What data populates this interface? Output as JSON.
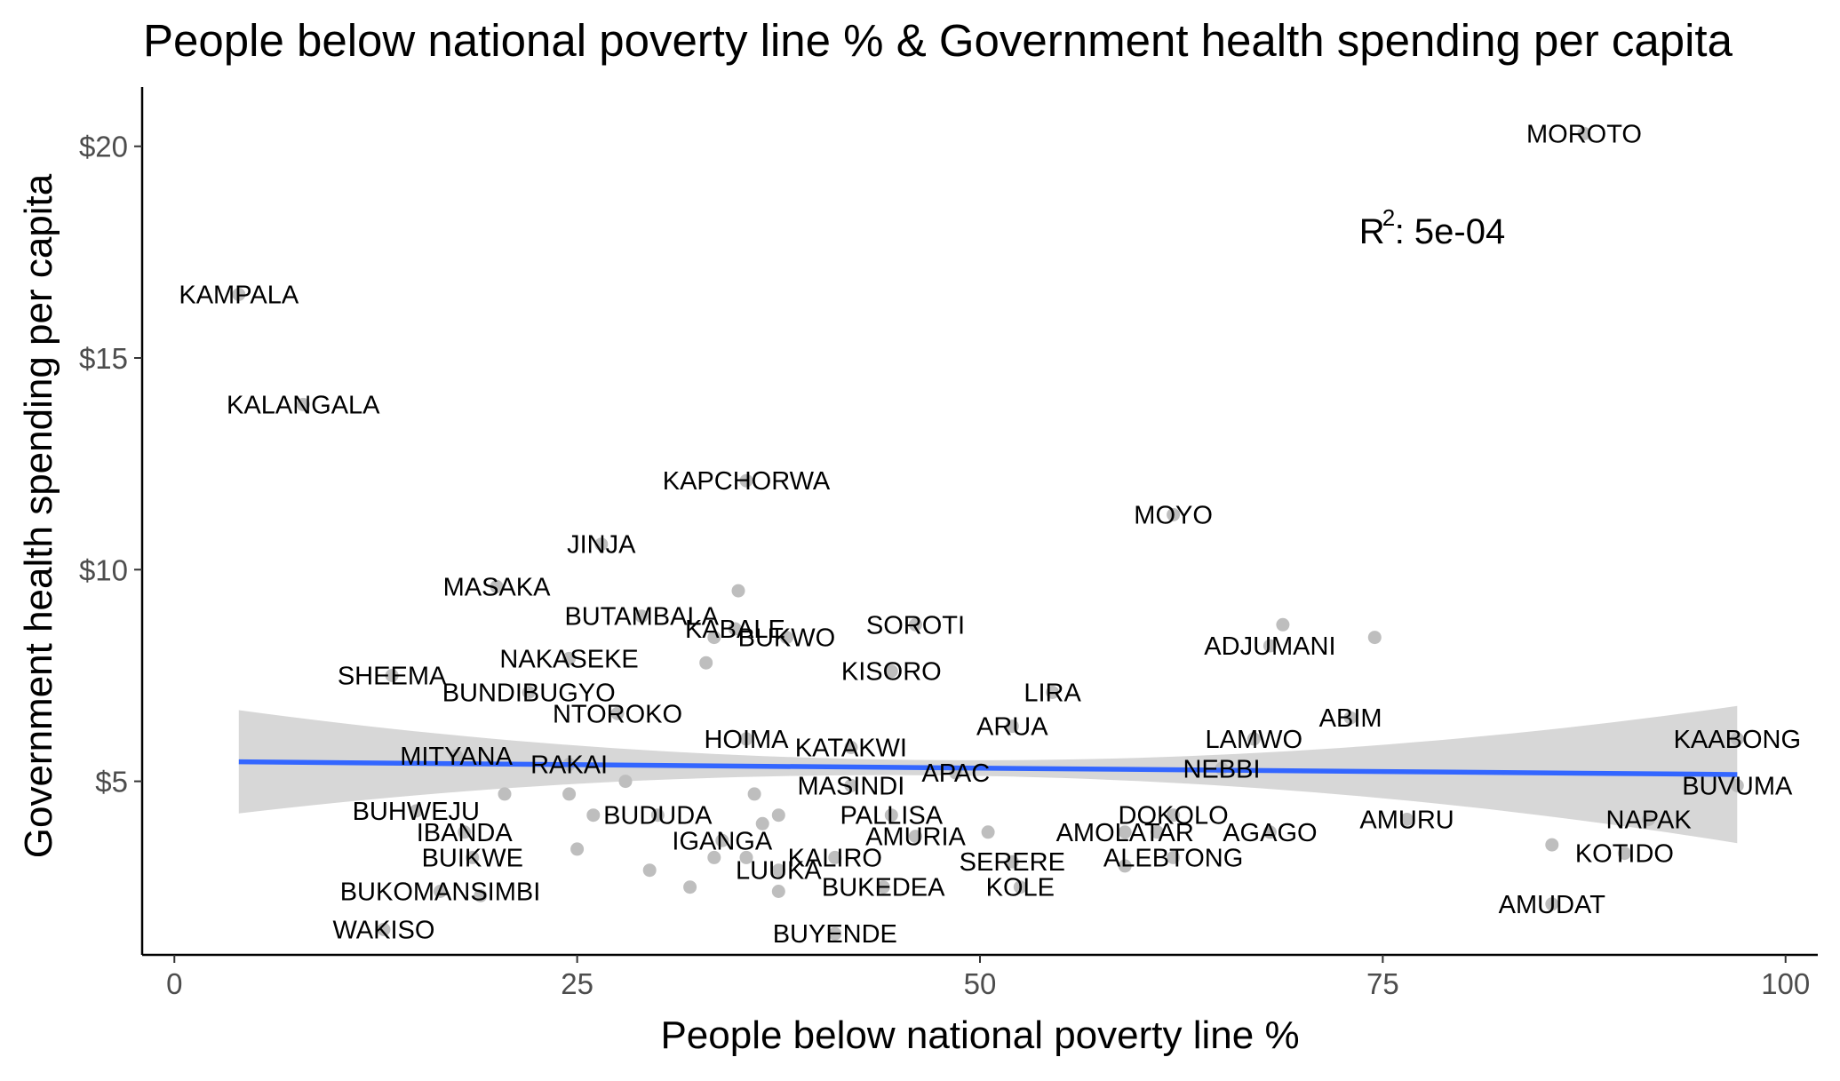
{
  "chart_data": {
    "type": "scatter",
    "title": "People below national poverty line % & Government health spending per capita",
    "xlabel": "People below national poverty line %",
    "ylabel": "Government health spending per capita",
    "xlim": [
      -2,
      102
    ],
    "ylim": [
      0.9,
      21.4
    ],
    "x_ticks": [
      0,
      25,
      50,
      75,
      100
    ],
    "y_ticks": [
      5,
      10,
      15,
      20
    ],
    "y_tick_labels": [
      "$5",
      "$10",
      "$15",
      "$20"
    ],
    "grid": false,
    "point_color": "#bebebe",
    "points": [
      {
        "label": "MOROTO",
        "x": 87.5,
        "y": 20.3
      },
      {
        "label": "KAMPALA",
        "x": 4.0,
        "y": 16.5
      },
      {
        "label": "KALANGALA",
        "x": 8.0,
        "y": 13.9
      },
      {
        "label": "KAPCHORWA",
        "x": 35.5,
        "y": 12.1
      },
      {
        "label": "MOYO",
        "x": 62.0,
        "y": 11.3
      },
      {
        "label": "JINJA",
        "x": 26.5,
        "y": 10.6
      },
      {
        "label": "MASAKA",
        "x": 20.0,
        "y": 9.6
      },
      {
        "label": "",
        "x": 35.0,
        "y": 9.5
      },
      {
        "label": "BUTAMBALA",
        "x": 29.0,
        "y": 8.9
      },
      {
        "label": "KABALE",
        "x": 34.8,
        "y": 8.6
      },
      {
        "label": "",
        "x": 33.5,
        "y": 8.4
      },
      {
        "label": "SOROTI",
        "x": 46.0,
        "y": 8.7
      },
      {
        "label": "",
        "x": 68.8,
        "y": 8.7
      },
      {
        "label": "",
        "x": 74.5,
        "y": 8.4
      },
      {
        "label": "ADJUMANI",
        "x": 68.0,
        "y": 8.2
      },
      {
        "label": "BUKWO",
        "x": 38.0,
        "y": 8.4
      },
      {
        "label": "NAKASEKE",
        "x": 24.5,
        "y": 7.9
      },
      {
        "label": "",
        "x": 33.0,
        "y": 7.8
      },
      {
        "label": "KISORO",
        "x": 44.5,
        "y": 7.6
      },
      {
        "label": "SHEEMA",
        "x": 13.5,
        "y": 7.5
      },
      {
        "label": "BUNDIBUGYO",
        "x": 22.0,
        "y": 7.1
      },
      {
        "label": "LIRA",
        "x": 54.5,
        "y": 7.1
      },
      {
        "label": "NTOROKO",
        "x": 27.5,
        "y": 6.6
      },
      {
        "label": "ABIM",
        "x": 73.0,
        "y": 6.5
      },
      {
        "label": "ARUA",
        "x": 52.0,
        "y": 6.3
      },
      {
        "label": "HOIMA",
        "x": 35.5,
        "y": 6.0
      },
      {
        "label": "LAMWO",
        "x": 67.0,
        "y": 6.0
      },
      {
        "label": "KAABONG",
        "x": 97.0,
        "y": 6.0
      },
      {
        "label": "KATAKWI",
        "x": 42.0,
        "y": 5.8
      },
      {
        "label": "MITYANA",
        "x": 17.5,
        "y": 5.6
      },
      {
        "label": "RAKAI",
        "x": 24.5,
        "y": 5.4
      },
      {
        "label": "APAC",
        "x": 48.5,
        "y": 5.2
      },
      {
        "label": "NEBBI",
        "x": 65.0,
        "y": 5.3
      },
      {
        "label": "",
        "x": 28.0,
        "y": 5.0
      },
      {
        "label": "MASINDI",
        "x": 42.0,
        "y": 4.9
      },
      {
        "label": "BUVUMA",
        "x": 97.0,
        "y": 4.9
      },
      {
        "label": "",
        "x": 20.5,
        "y": 4.7
      },
      {
        "label": "",
        "x": 24.5,
        "y": 4.7
      },
      {
        "label": "",
        "x": 36.0,
        "y": 4.7
      },
      {
        "label": "BUHWEJU",
        "x": 15.0,
        "y": 4.3
      },
      {
        "label": "BUDUDA",
        "x": 30.0,
        "y": 4.2
      },
      {
        "label": "",
        "x": 26.0,
        "y": 4.2
      },
      {
        "label": "",
        "x": 37.5,
        "y": 4.2
      },
      {
        "label": "PALLISA",
        "x": 44.5,
        "y": 4.2
      },
      {
        "label": "DOKOLO",
        "x": 62.0,
        "y": 4.2
      },
      {
        "label": "NAPAK",
        "x": 91.5,
        "y": 4.1
      },
      {
        "label": "AMURU",
        "x": 76.5,
        "y": 4.1
      },
      {
        "label": "",
        "x": 36.5,
        "y": 4.0
      },
      {
        "label": "IBANDA",
        "x": 18.0,
        "y": 3.8
      },
      {
        "label": "AMOLATAR",
        "x": 59.0,
        "y": 3.8
      },
      {
        "label": "",
        "x": 50.5,
        "y": 3.8
      },
      {
        "label": "AGAGO",
        "x": 68.0,
        "y": 3.8
      },
      {
        "label": "",
        "x": 61.0,
        "y": 3.8
      },
      {
        "label": "AMURIA",
        "x": 46.0,
        "y": 3.7
      },
      {
        "label": "IGANGA",
        "x": 34.0,
        "y": 3.6
      },
      {
        "label": "",
        "x": 25.0,
        "y": 3.4
      },
      {
        "label": "",
        "x": 85.5,
        "y": 3.5
      },
      {
        "label": "BUIKWE",
        "x": 18.5,
        "y": 3.2
      },
      {
        "label": "",
        "x": 33.5,
        "y": 3.2
      },
      {
        "label": "",
        "x": 35.5,
        "y": 3.2
      },
      {
        "label": "KALIRO",
        "x": 41.0,
        "y": 3.2
      },
      {
        "label": "ALEBTONG",
        "x": 62.0,
        "y": 3.2
      },
      {
        "label": "KOTIDO",
        "x": 90.0,
        "y": 3.3
      },
      {
        "label": "SERERE",
        "x": 52.0,
        "y": 3.1
      },
      {
        "label": "",
        "x": 29.5,
        "y": 2.9
      },
      {
        "label": "LUUKA",
        "x": 37.5,
        "y": 2.9
      },
      {
        "label": "",
        "x": 59.0,
        "y": 3.0
      },
      {
        "label": "BUKOMANSIMBI",
        "x": 16.5,
        "y": 2.4
      },
      {
        "label": "",
        "x": 32.0,
        "y": 2.5
      },
      {
        "label": "BUKEDEA",
        "x": 44.0,
        "y": 2.5
      },
      {
        "label": "KOLE",
        "x": 52.5,
        "y": 2.5
      },
      {
        "label": "",
        "x": 19.0,
        "y": 2.3
      },
      {
        "label": "",
        "x": 37.5,
        "y": 2.4
      },
      {
        "label": "AMUDAT",
        "x": 85.5,
        "y": 2.1
      },
      {
        "label": "WAKISO",
        "x": 13.0,
        "y": 1.5
      },
      {
        "label": "BUYENDE",
        "x": 41.0,
        "y": 1.4
      }
    ],
    "regression": {
      "method": "lm",
      "color": "#3366ff",
      "ci_fill": "#d3d3d3",
      "x_range": [
        4.0,
        97.0
      ],
      "y_at_start": 5.46,
      "y_at_end": 5.16,
      "ci_halfwidth_at_start": 1.22,
      "ci_halfwidth_at_end": 1.62,
      "ci_halfwidth_min": 0.18,
      "x_at_min_ci": 47.0
    },
    "annotation": {
      "text": "R",
      "superscript": "2",
      "suffix": ": 5e-04",
      "x": 77.5,
      "y": 18.0
    }
  }
}
